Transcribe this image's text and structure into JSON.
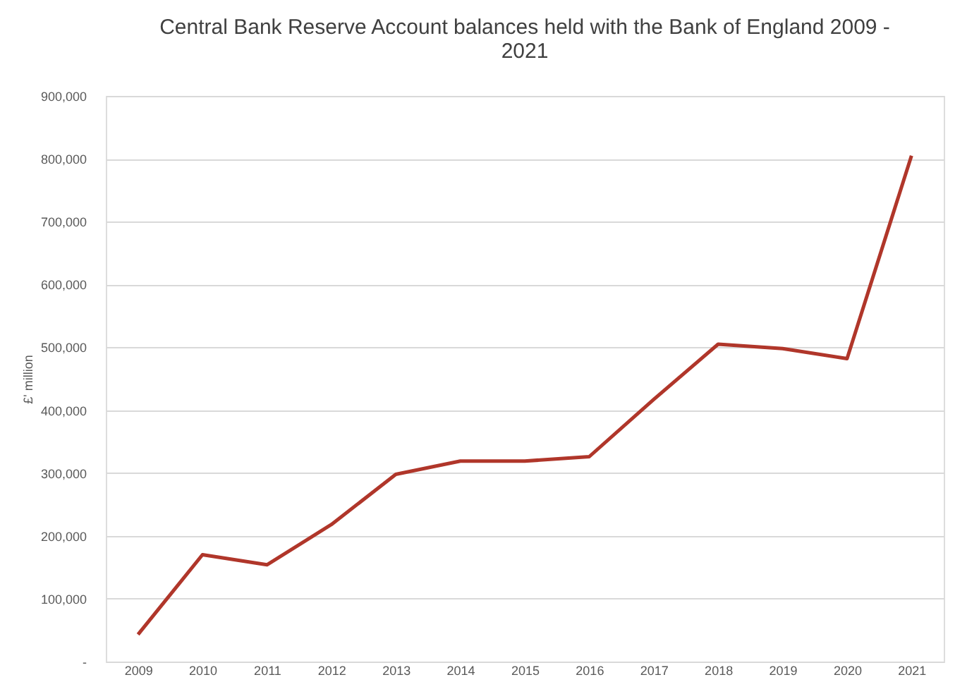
{
  "chart_data": {
    "type": "line",
    "title": [
      "Central Bank Reserve Account balances held with the Bank of England 2009 -",
      "2021"
    ],
    "ylabel": "£' million",
    "categories": [
      "2009",
      "2010",
      "2011",
      "2012",
      "2013",
      "2014",
      "2015",
      "2016",
      "2017",
      "2018",
      "2019",
      "2020",
      "2021"
    ],
    "series": [
      {
        "color": "#b0362a",
        "values": [
          43000,
          170000,
          154000,
          218000,
          298000,
          319000,
          319000,
          326000,
          417000,
          505000,
          498000,
          482000,
          805000
        ]
      }
    ],
    "ylim": [
      0,
      900000
    ],
    "yticks": [
      {
        "value": 0,
        "label": "-"
      },
      {
        "value": 100000,
        "label": "100,000"
      },
      {
        "value": 200000,
        "label": "200,000"
      },
      {
        "value": 300000,
        "label": "300,000"
      },
      {
        "value": 400000,
        "label": "400,000"
      },
      {
        "value": 500000,
        "label": "500,000"
      },
      {
        "value": 600000,
        "label": "600,000"
      },
      {
        "value": 700000,
        "label": "700,000"
      },
      {
        "value": 800000,
        "label": "800,000"
      },
      {
        "value": 900000,
        "label": "900,000"
      }
    ],
    "grid": "y",
    "legend": false,
    "marker": "none",
    "line_style": "solid"
  }
}
